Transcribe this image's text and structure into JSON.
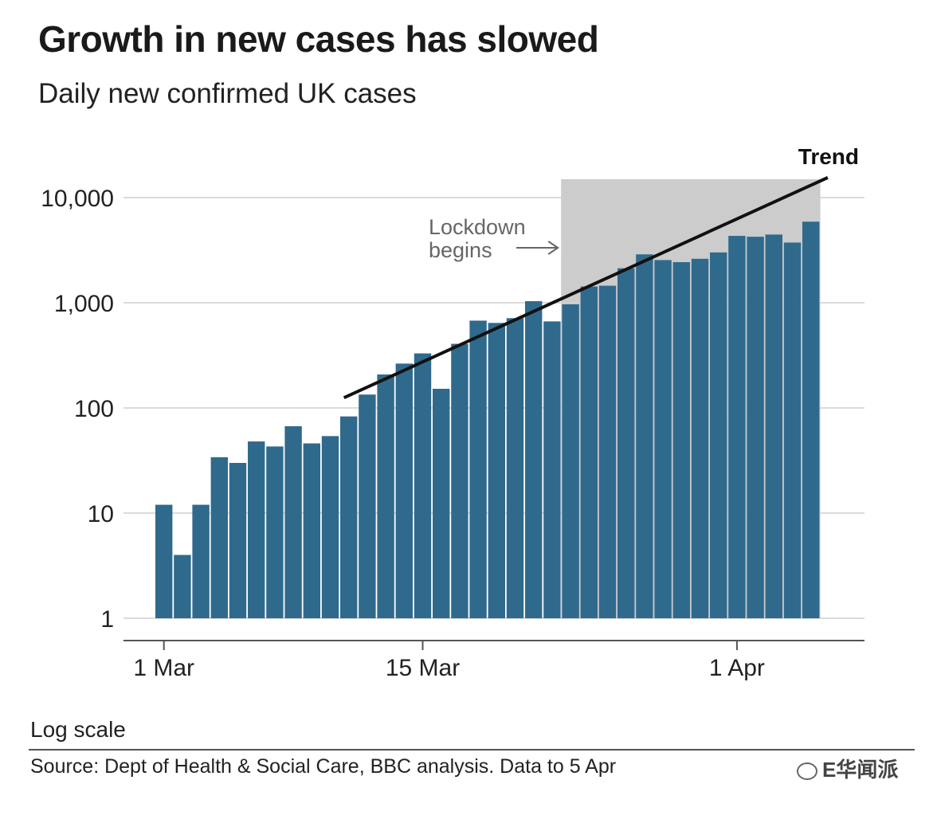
{
  "title": "Growth in new cases has slowed",
  "subtitle": "Daily new confirmed UK cases",
  "footer": {
    "scale_note": "Log scale",
    "source": "Source: Dept of Health & Social Care, BBC analysis. Data to 5 Apr",
    "watermark": "E华闻派"
  },
  "colors": {
    "bar": "#2f6a8d",
    "lockdown_band": "#cccccc",
    "trend_line": "#111111",
    "gridline": "#cfcfcf"
  },
  "chart_data": {
    "type": "bar",
    "title": "Growth in new cases has slowed",
    "subtitle": "Daily new confirmed UK cases",
    "y_scale": "log",
    "ylim": [
      1,
      10000
    ],
    "y_ticks": [
      "1",
      "10",
      "100",
      "1,000",
      "10,000"
    ],
    "y_tick_values": [
      1,
      10,
      100,
      1000,
      10000
    ],
    "x_ticks": [
      {
        "date": "2020-03-01",
        "label": "1 Mar"
      },
      {
        "date": "2020-03-15",
        "label": "15 Mar"
      },
      {
        "date": "2020-04-01",
        "label": "1 Apr"
      }
    ],
    "categories": [
      "2020-03-01",
      "2020-03-02",
      "2020-03-03",
      "2020-03-04",
      "2020-03-05",
      "2020-03-06",
      "2020-03-07",
      "2020-03-08",
      "2020-03-09",
      "2020-03-10",
      "2020-03-11",
      "2020-03-12",
      "2020-03-13",
      "2020-03-14",
      "2020-03-15",
      "2020-03-16",
      "2020-03-17",
      "2020-03-18",
      "2020-03-19",
      "2020-03-20",
      "2020-03-21",
      "2020-03-22",
      "2020-03-23",
      "2020-03-24",
      "2020-03-25",
      "2020-03-26",
      "2020-03-27",
      "2020-03-28",
      "2020-03-29",
      "2020-03-30",
      "2020-03-31",
      "2020-04-01",
      "2020-04-02",
      "2020-04-03",
      "2020-04-04",
      "2020-04-05"
    ],
    "values": [
      12,
      4,
      12,
      34,
      30,
      48,
      43,
      67,
      46,
      54,
      83,
      134,
      208,
      264,
      330,
      152,
      407,
      676,
      643,
      714,
      1035,
      665,
      967,
      1427,
      1452,
      2129,
      2885,
      2546,
      2433,
      2619,
      3009,
      4324,
      4244,
      4450,
      3735,
      5903
    ],
    "shaded_region": {
      "start": "2020-03-23",
      "end": "2020-04-05",
      "label": "Lockdown begins"
    },
    "trend": {
      "label": "Trend",
      "points": [
        {
          "date": "2020-03-11",
          "value": 125
        },
        {
          "date": "2020-04-06",
          "value": 15500
        }
      ]
    },
    "grid": true
  }
}
